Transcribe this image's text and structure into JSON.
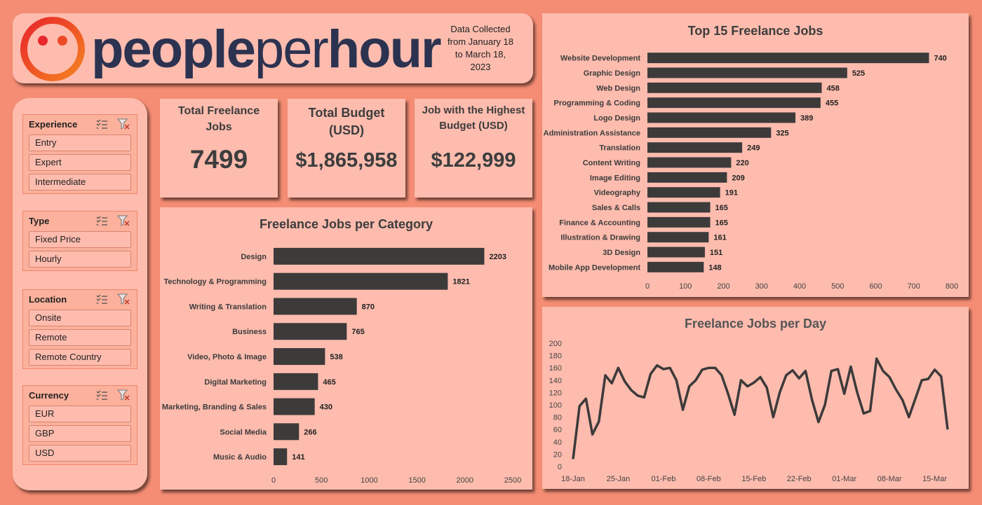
{
  "header": {
    "logo_part1": "people",
    "logo_part2": "per",
    "logo_part3": "hour",
    "data_note_lines": [
      "Data Collected",
      "from January 18",
      "to March 18,",
      "2023"
    ]
  },
  "slicers": [
    {
      "title": "Experience",
      "items": [
        "Entry",
        "Expert",
        "Intermediate"
      ]
    },
    {
      "title": "Type",
      "items": [
        "Fixed Price",
        "Hourly"
      ]
    },
    {
      "title": "Location",
      "items": [
        "Onsite",
        "Remote",
        "Remote Country"
      ]
    },
    {
      "title": "Currency",
      "items": [
        "EUR",
        "GBP",
        "USD"
      ]
    }
  ],
  "kpis": {
    "total_jobs": {
      "title": "Total Freelance Jobs",
      "value": "7499"
    },
    "total_budget": {
      "title": "Total Budget (USD)",
      "value": "$1,865,958"
    },
    "highest_budget": {
      "title": "Job with the Highest Budget (USD)",
      "value": "$122,999"
    }
  },
  "colors": {
    "background": "#f58d74",
    "card": "#fdbcae",
    "bar": "#3d3a3a",
    "logo_text": "#2c3350",
    "logo_gradient": [
      "#e8262b",
      "#f58220"
    ]
  },
  "chart_data": [
    {
      "id": "category",
      "type": "bar",
      "orientation": "horizontal",
      "title": "Freelance Jobs per Category",
      "categories": [
        "Design",
        "Technology & Programming",
        "Writing & Translation",
        "Business",
        "Video, Photo & Image",
        "Digital Marketing",
        "Marketing, Branding & Sales",
        "Social Media",
        "Music & Audio"
      ],
      "values": [
        2203,
        1821,
        870,
        765,
        538,
        465,
        430,
        266,
        141
      ],
      "xlim": [
        0,
        2500
      ],
      "ticks": [
        0,
        500,
        1000,
        1500,
        2000,
        2500
      ],
      "grid": false
    },
    {
      "id": "top15",
      "type": "bar",
      "orientation": "horizontal",
      "title": "Top 15 Freelance Jobs",
      "categories": [
        "Website Development",
        "Graphic Design",
        "Web Design",
        "Programming & Coding",
        "Logo Design",
        "Administration Assistance",
        "Translation",
        "Content Writing",
        "Image Editing",
        "Videography",
        "Sales & Calls",
        "Finance & Accounting",
        "Illustration & Drawing",
        "3D Design",
        "Mobile App Development"
      ],
      "values": [
        740,
        525,
        458,
        455,
        389,
        325,
        249,
        220,
        209,
        191,
        165,
        165,
        161,
        151,
        148
      ],
      "xlim": [
        0,
        800
      ],
      "ticks": [
        0,
        100,
        200,
        300,
        400,
        500,
        600,
        700,
        800
      ],
      "grid": false
    },
    {
      "id": "per_day",
      "type": "line",
      "title": "Freelance Jobs per Day",
      "x_tick_labels": [
        "18-Jan",
        "25-Jan",
        "01-Feb",
        "08-Feb",
        "15-Feb",
        "22-Feb",
        "01-Mar",
        "08-Mar",
        "15-Mar"
      ],
      "y_ticks": [
        0,
        20,
        40,
        60,
        80,
        100,
        120,
        140,
        160,
        180,
        200
      ],
      "ylim": [
        0,
        200
      ],
      "values": [
        12,
        98,
        110,
        52,
        73,
        148,
        135,
        160,
        138,
        124,
        115,
        112,
        150,
        164,
        158,
        160,
        140,
        92,
        130,
        140,
        157,
        160,
        160,
        148,
        118,
        84,
        140,
        130,
        136,
        145,
        128,
        80,
        120,
        148,
        156,
        143,
        155,
        108,
        72,
        100,
        155,
        158,
        118,
        162,
        120,
        86,
        90,
        175,
        155,
        145,
        125,
        108,
        80,
        110,
        140,
        142,
        157,
        146,
        60
      ],
      "grid": false
    }
  ]
}
